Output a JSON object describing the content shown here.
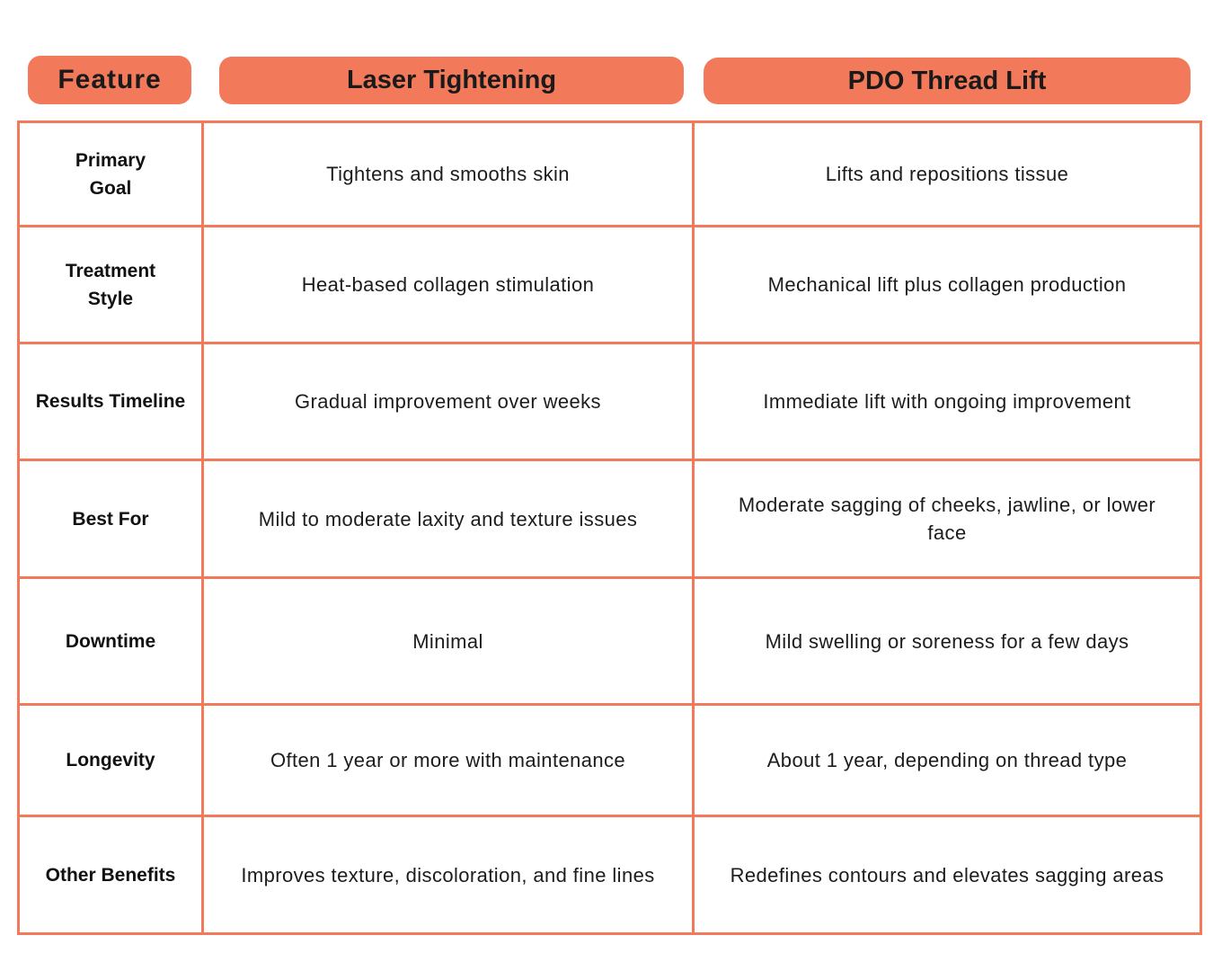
{
  "header": {
    "feature_label": "Feature",
    "laser_label": "Laser Tightening",
    "pdo_label": "PDO Thread Lift"
  },
  "colors": {
    "accent": "#F27A5A",
    "text": "#111111",
    "background": "#ffffff"
  },
  "chart_data": {
    "type": "table",
    "columns": [
      "Feature",
      "Laser Tightening",
      "PDO Thread Lift"
    ],
    "rows": [
      {
        "feature": "Primary Goal",
        "laser": "Tightens and smooths skin",
        "pdo": "Lifts and repositions tissue"
      },
      {
        "feature": "Treatment Style",
        "laser": "Heat-based collagen stimulation",
        "pdo": "Mechanical lift plus collagen production"
      },
      {
        "feature": "Results Timeline",
        "laser": "Gradual improvement over weeks",
        "pdo": "Immediate lift with ongoing improvement"
      },
      {
        "feature": "Best For",
        "laser": "Mild to moderate laxity and texture issues",
        "pdo": "Moderate sagging of cheeks, jawline, or lower face"
      },
      {
        "feature": "Downtime",
        "laser": "Minimal",
        "pdo": "Mild swelling or soreness for a few days"
      },
      {
        "feature": "Longevity",
        "laser": "Often 1 year or more with maintenance",
        "pdo": "About 1 year, depending on thread type"
      },
      {
        "feature": "Other Benefits",
        "laser": "Improves texture, discoloration, and fine lines",
        "pdo": "Redefines contours and elevates sagging areas"
      }
    ]
  }
}
